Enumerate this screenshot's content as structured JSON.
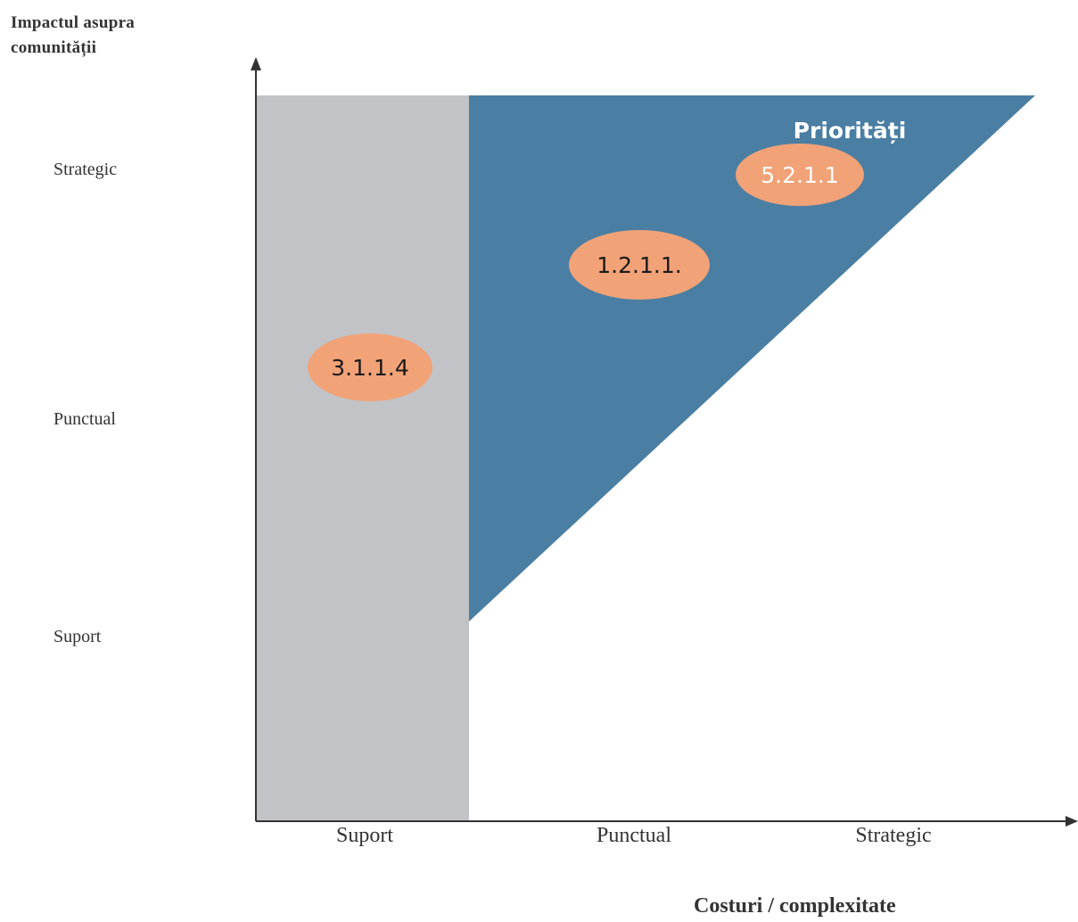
{
  "y_axis": {
    "title_line1": "Impactul asupra",
    "title_line2": "comunității",
    "ticks": [
      "Strategic",
      "Punctual",
      "Suport"
    ]
  },
  "x_axis": {
    "title": "Costuri / complexitate",
    "ticks": [
      "Suport",
      "Punctual",
      "Strategic"
    ]
  },
  "zones": {
    "priority_label": "Priorități",
    "priority_color": "#4a7ea3",
    "support_color": "#c1c3c6"
  },
  "items": [
    {
      "label": "5.2.1.1",
      "text_color": "#ffffff"
    },
    {
      "label": "1.2.1.1.",
      "text_color": "#1a1a1a"
    },
    {
      "label": "3.1.1.4",
      "text_color": "#1a1a1a"
    }
  ],
  "colors": {
    "oval": "#f2a277",
    "axis": "#333333"
  }
}
